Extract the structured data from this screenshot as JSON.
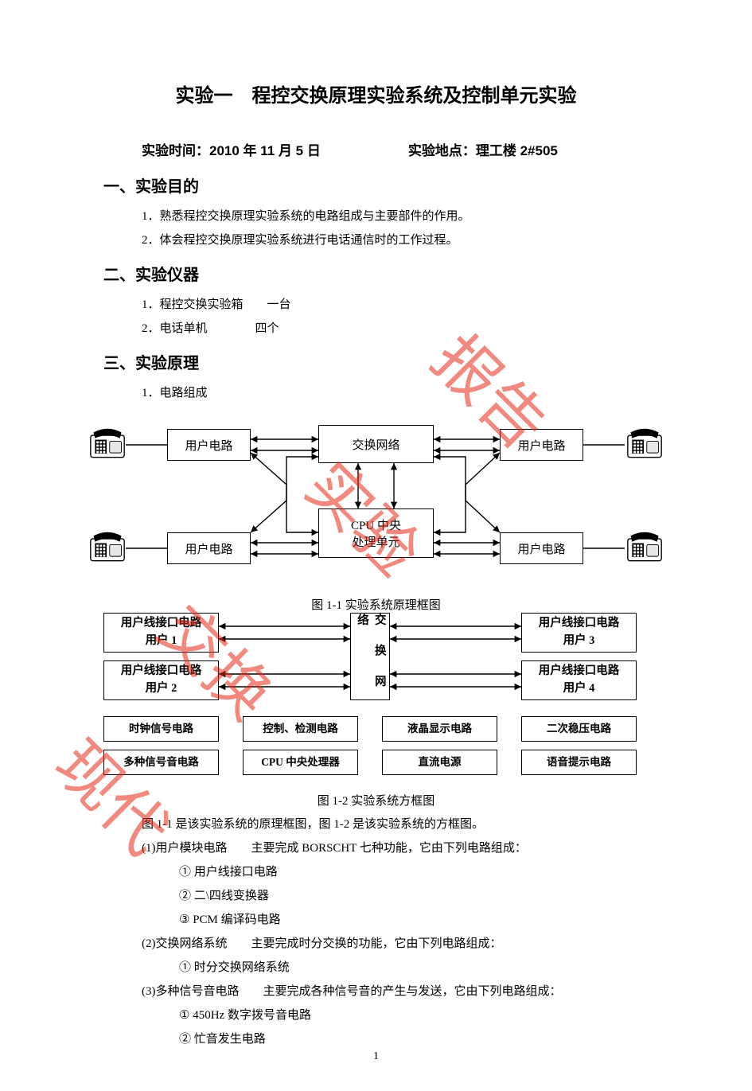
{
  "watermark": {
    "c1": "报告",
    "c2": "实验",
    "c3": "交换",
    "c4": "现代"
  },
  "title": "实验一　程控交换原理实验系统及控制单元实验",
  "meta": {
    "time_label": "实验时间：2010 年 11 月 5 日",
    "place_label": "实验地点：理工楼 2#505"
  },
  "sections": {
    "s1": "一、实验目的",
    "s2": "二、实验仪器",
    "s3": "三、实验原理"
  },
  "purpose": {
    "p1": "1．熟悉程控交换原理实验系统的电路组成与主要部件的作用。",
    "p2": "2．体会程控交换原理实验系统进行电话通信时的工作过程。"
  },
  "instruments": {
    "i1a": "1．程控交换实验箱",
    "i1b": "一台",
    "i2a": "2．电话单机",
    "i2b": "四个"
  },
  "principle_head": "1．电路组成",
  "diagram1": {
    "nodes": {
      "user_tl": "用户电路",
      "user_tr": "用户电路",
      "user_bl": "用户电路",
      "user_br": "用户电路",
      "switch": "交换网络",
      "cpu_l1": "CPU 中央",
      "cpu_l2": "处理单元"
    },
    "caption": "图 1-1 实验系统原理框图",
    "colors": {
      "line": "#000000",
      "bg": "#ffffff"
    }
  },
  "diagram2": {
    "left_top_l1": "用户线接口电路",
    "left_top_l2": "用户 1",
    "left_bot_l1": "用户线接口电路",
    "left_bot_l2": "用户 2",
    "right_top_l1": "用户线接口电路",
    "right_top_l2": "用户 3",
    "right_bot_l1": "用户线接口电路",
    "right_bot_l2": "用户 4",
    "center_vert": "交 换 网 络",
    "row1": {
      "a": "时钟信号电路",
      "b": "控制、检测电路",
      "c": "液晶显示电路",
      "d": "二次稳压电路"
    },
    "row2": {
      "a": "多种信号音电路",
      "b": "CPU 中央处理器",
      "c": "直流电源",
      "d": "语音提示电路"
    },
    "caption": "图 1-2 实验系统方框图"
  },
  "body": {
    "p0": "图 1-1 是该实验系统的原理框图，图 1-2 是该实验系统的方框图。",
    "p1": "(1)用户模块电路　　主要完成 BORSCHT 七种功能，它由下列电路组成：",
    "p1a": "① 用户线接口电路",
    "p1b": "② 二\\四线变换器",
    "p1c": "③ PCM 编译码电路",
    "p2": "(2)交换网络系统　　主要完成时分交换的功能，它由下列电路组成：",
    "p2a": "① 时分交换网络系统",
    "p3": "(3)多种信号音电路　　主要完成各种信号音的产生与发送，它由下列电路组成：",
    "p3a": "① 450Hz 数字拨号音电路",
    "p3b": "② 忙音发生电路"
  },
  "page_number": "1"
}
